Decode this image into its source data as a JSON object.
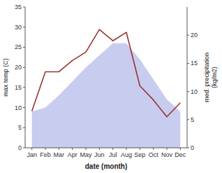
{
  "chart_data": {
    "type": "area",
    "categories": [
      "Jan",
      "Feb",
      "Mar",
      "Apr",
      "May",
      "Jun",
      "Jul",
      "Aug",
      "Sep",
      "Oct",
      "Nov",
      "Dec"
    ],
    "series": [
      {
        "type": "area",
        "color": "#c8ccee",
        "values": [
          9.0,
          10.0,
          13.0,
          16.5,
          20.0,
          23.0,
          26.0,
          26.0,
          22.0,
          17.0,
          12.0,
          9.0
        ]
      },
      {
        "type": "line",
        "color": "#993333",
        "axis": "y2",
        "values": [
          6.5,
          13.5,
          13.5,
          15.5,
          17.0,
          21.0,
          19.0,
          20.5,
          11.0,
          8.5,
          5.5,
          8.0
        ]
      }
    ],
    "xlabel": "date (month)",
    "ylabel": "max temp (C)",
    "y2label": "med. precipitation\n(kg/m2)",
    "ylim": [
      0,
      35
    ],
    "yticks": [
      0,
      5,
      10,
      15,
      20,
      25,
      30,
      35
    ],
    "y2lim": [
      0,
      25
    ],
    "y2ticks": [
      0,
      5,
      10,
      15,
      20
    ],
    "grid": false
  }
}
